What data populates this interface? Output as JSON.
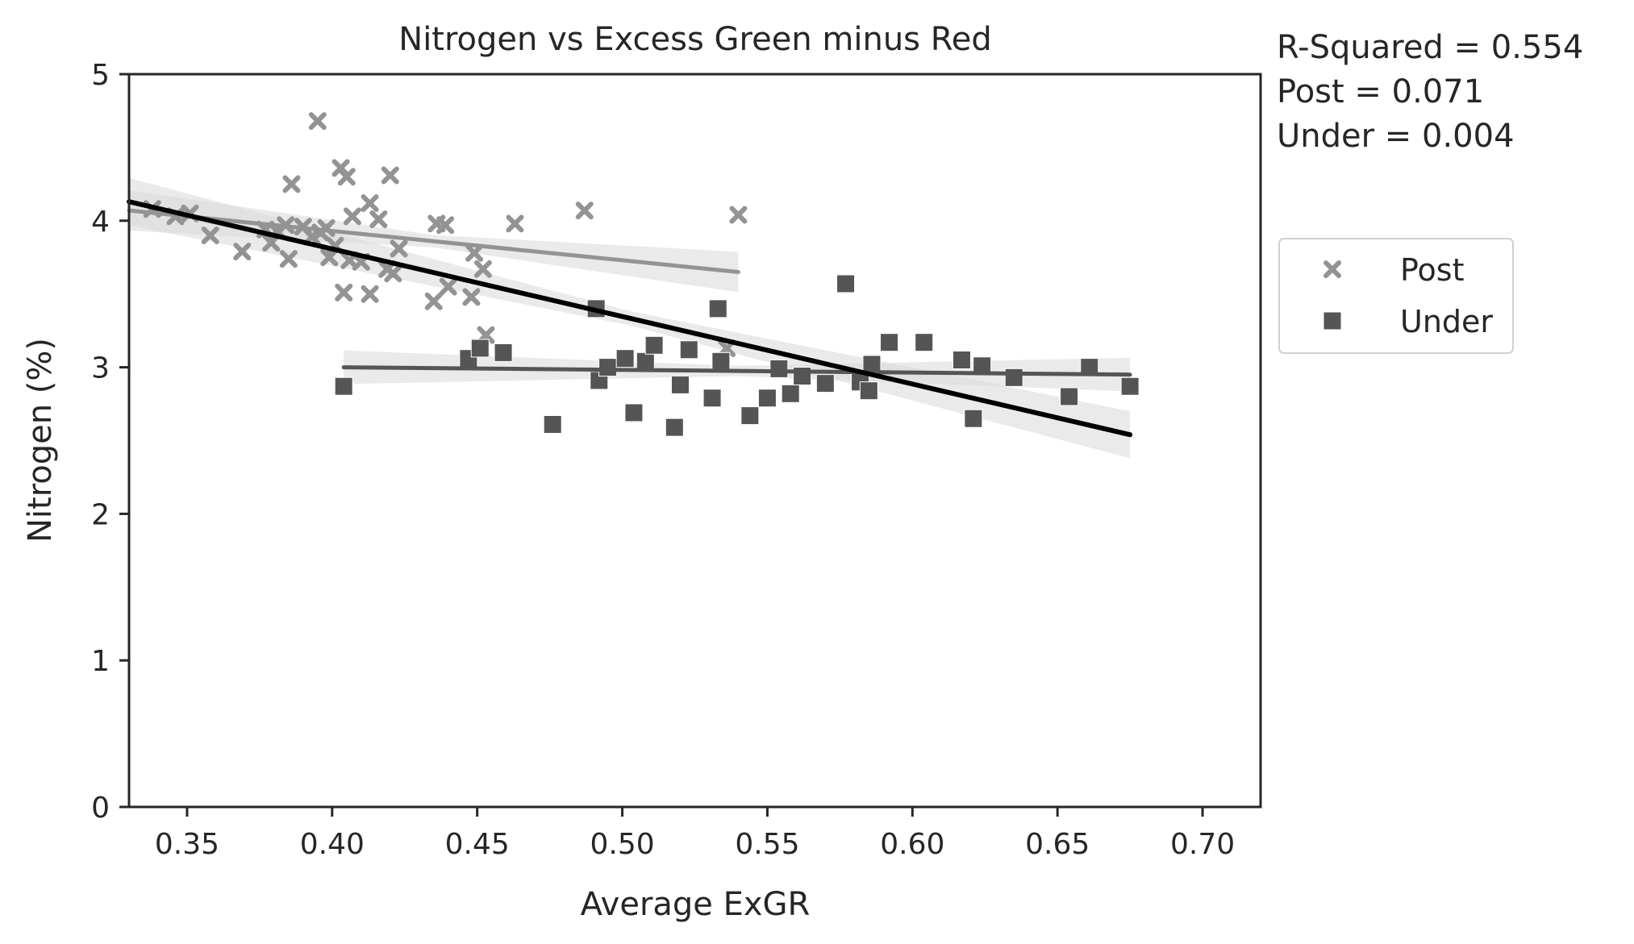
{
  "chart_data": {
    "type": "scatter",
    "title": "Nitrogen vs Excess Green minus Red",
    "xlabel": "Average ExGR",
    "ylabel": "Nitrogen (%)",
    "xlim": [
      0.33,
      0.72
    ],
    "ylim": [
      0,
      5
    ],
    "xticks": [
      "0.35",
      "0.40",
      "0.45",
      "0.50",
      "0.55",
      "0.60",
      "0.65",
      "0.70"
    ],
    "yticks": [
      "0",
      "1",
      "2",
      "3",
      "4",
      "5"
    ],
    "grid": false,
    "legend_position": "right",
    "stats": [
      "R-Squared = 0.554",
      "Post = 0.071",
      "Under = 0.004"
    ],
    "colors": {
      "post": "#939393",
      "under": "#555555",
      "overall": "#000000",
      "band": "#d9d9d9"
    },
    "series": [
      {
        "name": "Post",
        "marker": "x",
        "points": [
          [
            0.338,
            4.08
          ],
          [
            0.346,
            4.03
          ],
          [
            0.351,
            4.05
          ],
          [
            0.358,
            3.9
          ],
          [
            0.369,
            3.79
          ],
          [
            0.377,
            3.94
          ],
          [
            0.379,
            3.85
          ],
          [
            0.381,
            3.93
          ],
          [
            0.384,
            3.97
          ],
          [
            0.385,
            3.74
          ],
          [
            0.386,
            4.25
          ],
          [
            0.39,
            3.96
          ],
          [
            0.393,
            3.89
          ],
          [
            0.395,
            4.68
          ],
          [
            0.396,
            3.92
          ],
          [
            0.398,
            3.95
          ],
          [
            0.399,
            3.75
          ],
          [
            0.401,
            3.83
          ],
          [
            0.403,
            4.36
          ],
          [
            0.404,
            3.51
          ],
          [
            0.405,
            4.3
          ],
          [
            0.406,
            3.73
          ],
          [
            0.407,
            4.03
          ],
          [
            0.41,
            3.72
          ],
          [
            0.413,
            4.12
          ],
          [
            0.413,
            3.5
          ],
          [
            0.416,
            4.01
          ],
          [
            0.419,
            3.67
          ],
          [
            0.42,
            4.31
          ],
          [
            0.421,
            3.64
          ],
          [
            0.423,
            3.81
          ],
          [
            0.435,
            3.45
          ],
          [
            0.436,
            3.98
          ],
          [
            0.439,
            3.97
          ],
          [
            0.44,
            3.55
          ],
          [
            0.448,
            3.48
          ],
          [
            0.449,
            3.78
          ],
          [
            0.452,
            3.67
          ],
          [
            0.453,
            3.22
          ],
          [
            0.463,
            3.98
          ],
          [
            0.487,
            4.07
          ],
          [
            0.536,
            3.13
          ],
          [
            0.54,
            4.04
          ]
        ],
        "fit": [
          [
            0.33,
            4.07
          ],
          [
            0.54,
            3.65
          ]
        ]
      },
      {
        "name": "Under",
        "marker": "s",
        "points": [
          [
            0.404,
            2.87
          ],
          [
            0.447,
            3.06
          ],
          [
            0.451,
            3.13
          ],
          [
            0.459,
            3.1
          ],
          [
            0.476,
            2.61
          ],
          [
            0.491,
            3.4
          ],
          [
            0.492,
            2.91
          ],
          [
            0.495,
            3.0
          ],
          [
            0.501,
            3.06
          ],
          [
            0.504,
            2.69
          ],
          [
            0.508,
            3.04
          ],
          [
            0.511,
            3.15
          ],
          [
            0.518,
            2.59
          ],
          [
            0.52,
            2.88
          ],
          [
            0.523,
            3.12
          ],
          [
            0.531,
            2.79
          ],
          [
            0.533,
            3.4
          ],
          [
            0.534,
            3.04
          ],
          [
            0.544,
            2.67
          ],
          [
            0.55,
            2.79
          ],
          [
            0.554,
            2.99
          ],
          [
            0.558,
            2.82
          ],
          [
            0.562,
            2.94
          ],
          [
            0.57,
            2.89
          ],
          [
            0.577,
            3.57
          ],
          [
            0.582,
            2.9
          ],
          [
            0.585,
            2.84
          ],
          [
            0.586,
            3.02
          ],
          [
            0.592,
            3.17
          ],
          [
            0.604,
            3.17
          ],
          [
            0.617,
            3.05
          ],
          [
            0.621,
            2.65
          ],
          [
            0.624,
            3.01
          ],
          [
            0.635,
            2.93
          ],
          [
            0.654,
            2.8
          ],
          [
            0.661,
            3.0
          ],
          [
            0.675,
            2.87
          ]
        ],
        "fit": [
          [
            0.404,
            3.0
          ],
          [
            0.675,
            2.95
          ]
        ]
      },
      {
        "name": "",
        "type": "line",
        "fit": [
          [
            0.33,
            4.13
          ],
          [
            0.675,
            2.54
          ]
        ]
      }
    ],
    "legend": [
      {
        "label": "Post",
        "marker": "x"
      },
      {
        "label": "Under",
        "marker": "s"
      }
    ]
  }
}
